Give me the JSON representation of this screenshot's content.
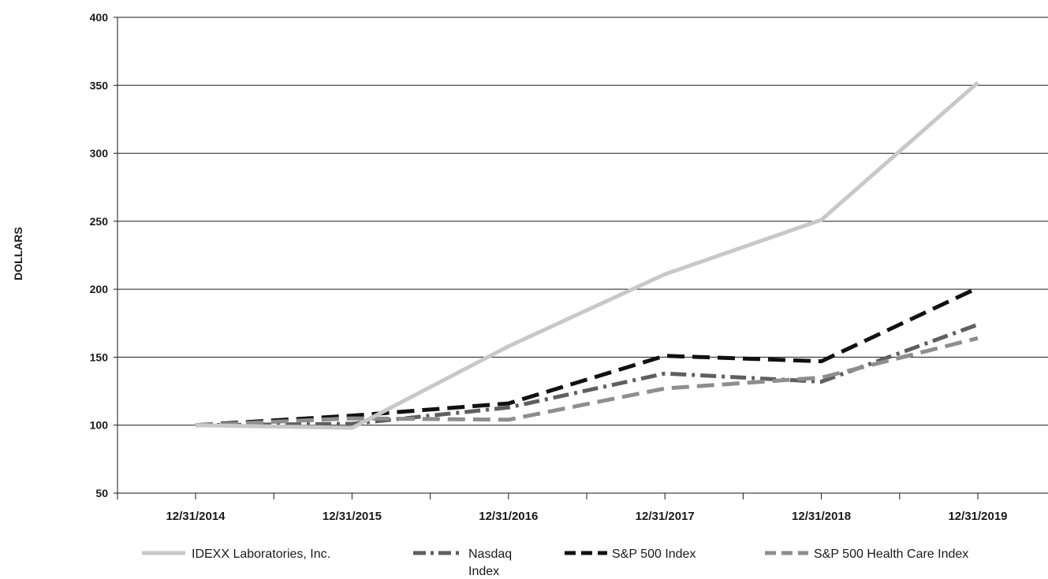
{
  "chart_data": {
    "type": "line",
    "title": "",
    "xlabel": "",
    "ylabel": "DOLLARS",
    "ylim": [
      50,
      400
    ],
    "yticks": [
      "50",
      "100",
      "150",
      "200",
      "250",
      "300",
      "350",
      "400"
    ],
    "categories": [
      "12/31/2014",
      "12/31/2015",
      "12/31/2016",
      "12/31/2017",
      "12/31/2018",
      "12/31/2019"
    ],
    "grid": "horizontal",
    "legend_position": "bottom",
    "series": [
      {
        "name": "IDEXX Laboratories, Inc.",
        "values": [
          100,
          98,
          158,
          211,
          251,
          352
        ],
        "color": "#c8c8c8",
        "style": "solid"
      },
      {
        "name": "Nasdaq Index",
        "name_lines": [
          "Nasdaq",
          "Index"
        ],
        "values": [
          100,
          101,
          113,
          138,
          132,
          174
        ],
        "color": "#5f5f5f",
        "style": "dash-dot"
      },
      {
        "name": "S&P 500 Index",
        "values": [
          100,
          107,
          116,
          151,
          147,
          201
        ],
        "color": "#111111",
        "style": "dashed"
      },
      {
        "name": "S&P 500 Health Care Index",
        "values": [
          100,
          105,
          104,
          127,
          135,
          164
        ],
        "color": "#8e8e8e",
        "style": "dashed"
      }
    ]
  }
}
